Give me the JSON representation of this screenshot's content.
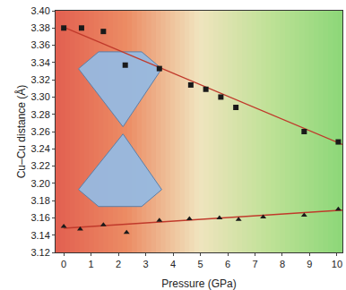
{
  "chart_data": {
    "type": "scatter",
    "x_label": "Pressure (GPa)",
    "y_label": "Cu–Cu distance (Å)",
    "xlim": [
      -0.3,
      10.2
    ],
    "xticks": [
      0,
      1,
      2,
      3,
      4,
      5,
      6,
      7,
      8,
      9,
      10
    ],
    "ylim": [
      3.12,
      3.4
    ],
    "yticks": [
      3.12,
      3.14,
      3.16,
      3.18,
      {
        "value": 3.2,
        "label": "3.20"
      },
      3.22,
      3.24,
      3.26,
      3.28,
      {
        "value": 3.3,
        "label": "3.30"
      },
      3.32,
      3.34,
      3.36,
      3.38,
      {
        "value": 3.4,
        "label": "3.40"
      }
    ],
    "grid": false,
    "series": [
      {
        "type": "scatter",
        "marker": "square",
        "color": "#1a1a1a",
        "x": [
          0,
          0.65,
          1.45,
          2.25,
          3.5,
          4.65,
          5.2,
          5.75,
          6.3,
          8.8,
          10.05
        ],
        "values": [
          3.38,
          3.38,
          3.376,
          3.337,
          3.333,
          3.314,
          3.309,
          3.3,
          3.288,
          3.26,
          3.248
        ]
      },
      {
        "type": "scatter",
        "marker": "triangle-up",
        "color": "#1a1a1a",
        "x": [
          0,
          0.6,
          1.45,
          2.3,
          3.5,
          4.6,
          5.7,
          6.4,
          7.3,
          8.8,
          10.05
        ],
        "values": [
          3.15,
          3.147,
          3.152,
          3.143,
          3.157,
          3.159,
          3.16,
          3.158,
          3.161,
          3.163,
          3.17
        ]
      },
      {
        "type": "line",
        "line_style": "solid",
        "color": "#c0392b",
        "x": [
          0,
          10.2
        ],
        "values": [
          3.381,
          3.245
        ]
      },
      {
        "type": "line",
        "line_style": "solid",
        "color": "#c0392b",
        "x": [
          0,
          10.2
        ],
        "values": [
          3.148,
          3.169
        ]
      }
    ]
  }
}
